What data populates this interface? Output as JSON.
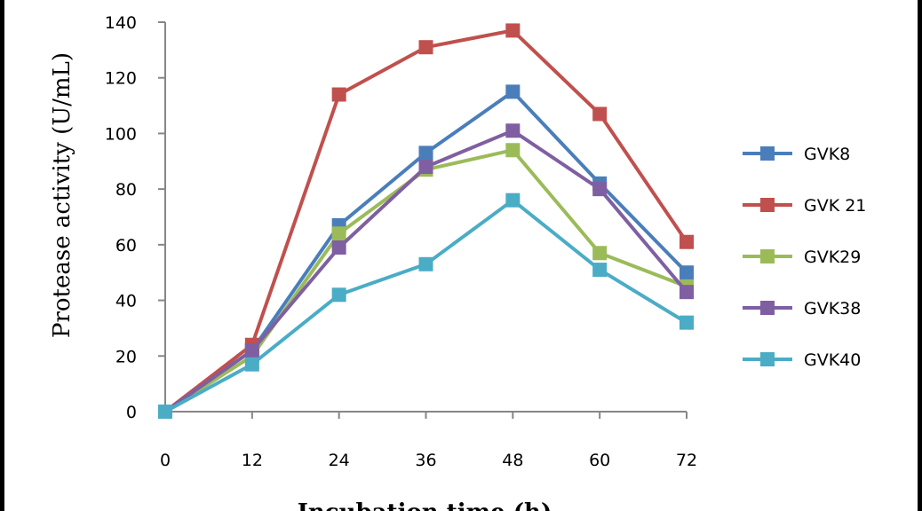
{
  "chart_data": {
    "type": "line",
    "title": "",
    "xlabel": "Incubation time (h)",
    "ylabel": "Protease activity (U/mL)",
    "x": [
      0,
      12,
      24,
      36,
      48,
      60,
      72
    ],
    "x_tick_labels": [
      "0",
      "12",
      "24",
      "36",
      "48",
      "60",
      "72"
    ],
    "ylim": [
      0,
      140
    ],
    "y_ticks": [
      0,
      20,
      40,
      60,
      80,
      100,
      120,
      140
    ],
    "y_tick_labels": [
      "0",
      "20",
      "40",
      "60",
      "80",
      "100",
      "120",
      "140"
    ],
    "grid": false,
    "legend_position": "right",
    "marker": "square",
    "series": [
      {
        "name": "GVK8",
        "color": "#4a7ebb",
        "values": [
          0,
          22,
          67,
          93,
          115,
          82,
          50
        ]
      },
      {
        "name": "GVK 21",
        "color": "#c0504d",
        "values": [
          0,
          24,
          114,
          131,
          137,
          107,
          61
        ]
      },
      {
        "name": "GVK29",
        "color": "#9bbb59",
        "values": [
          0,
          20,
          64,
          87,
          94,
          57,
          45
        ]
      },
      {
        "name": "GVK38",
        "color": "#7f5fa1",
        "values": [
          0,
          22,
          59,
          88,
          101,
          80,
          43
        ]
      },
      {
        "name": "GVK40",
        "color": "#4bacc6",
        "values": [
          0,
          17,
          42,
          53,
          76,
          51,
          32
        ]
      }
    ]
  }
}
